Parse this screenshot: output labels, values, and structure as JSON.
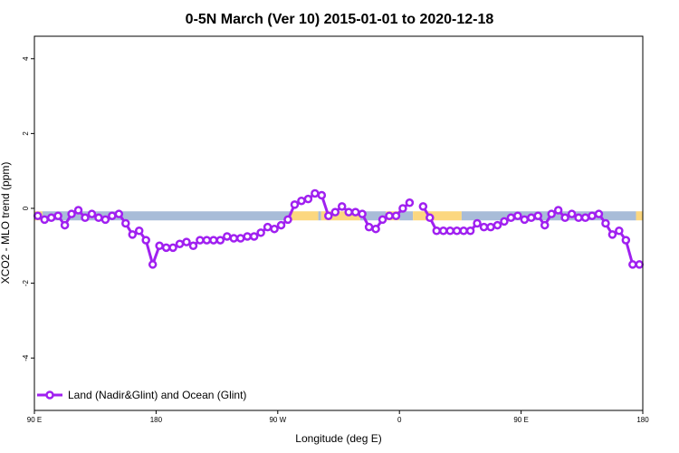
{
  "chart_data": {
    "type": "line",
    "title": "0-5N March (Ver 10)   2015-01-01 to 2020-12-18",
    "xlabel": "Longitude (deg E)",
    "ylabel": "XCO2 - MLO trend (ppm)",
    "xlim": [
      90,
      540
    ],
    "ylim": [
      -5.4,
      4.6
    ],
    "xticks": [
      {
        "value": 90,
        "label": "90 E"
      },
      {
        "value": 180,
        "label": "180"
      },
      {
        "value": 270,
        "label": "90 W"
      },
      {
        "value": 360,
        "label": "0"
      },
      {
        "value": 450,
        "label": "90 E"
      },
      {
        "value": 540,
        "label": "180"
      }
    ],
    "yticks": [
      {
        "value": -4,
        "label": "-4"
      },
      {
        "value": -2,
        "label": "-2"
      },
      {
        "value": 0,
        "label": "0"
      },
      {
        "value": 2,
        "label": "2"
      },
      {
        "value": 4,
        "label": "4"
      }
    ],
    "surface_band": {
      "y_value": -0.2,
      "segments": [
        {
          "type": "land",
          "from": 90,
          "to": 96,
          "color": "#fcd77f"
        },
        {
          "type": "ocean",
          "from": 96,
          "to": 280,
          "color": "#a8bcd8"
        },
        {
          "type": "land",
          "from": 280,
          "to": 300,
          "color": "#fcd77f"
        },
        {
          "type": "ocean",
          "from": 300,
          "to": 302,
          "color": "#a8bcd8"
        },
        {
          "type": "land",
          "from": 302,
          "to": 331,
          "color": "#fcd77f"
        },
        {
          "type": "ocean",
          "from": 331,
          "to": 350,
          "color": "#a8bcd8"
        },
        {
          "type": "land",
          "from": 350,
          "to": 360,
          "color": "#fcd77f"
        },
        {
          "type": "ocean",
          "from": 360,
          "to": 370,
          "color": "#a8bcd8"
        },
        {
          "type": "land",
          "from": 370,
          "to": 406,
          "color": "#fcd77f"
        },
        {
          "type": "ocean",
          "from": 406,
          "to": 535,
          "color": "#a8bcd8"
        },
        {
          "type": "land",
          "from": 535,
          "to": 540,
          "color": "#fcd77f"
        }
      ]
    },
    "series": [
      {
        "name": "Land (Nadir&Glint) and Ocean (Glint)",
        "color": "#a020f0",
        "segments": [
          {
            "x": [
              92.5,
              97.5,
              102.5,
              107.5,
              112.5,
              117.5,
              122.5,
              127.5,
              132.5,
              137.5,
              142.5,
              147.5,
              152.5,
              157.5,
              162.5,
              167.5,
              172.5,
              177.5,
              182.5,
              187.5,
              192.5,
              197.5,
              202.5,
              207.5,
              212.5,
              217.5,
              222.5,
              227.5,
              232.5,
              237.5,
              242.5,
              247.5,
              252.5,
              257.5,
              262.5,
              267.5,
              272.5,
              277.5,
              282.5,
              287.5,
              292.5,
              297.5,
              302.5,
              307.5,
              312.5,
              317.5,
              322.5,
              327.5,
              332.5,
              337.5,
              342.5,
              347.5,
              352.5,
              357.5,
              362.5,
              367.5
            ],
            "y": [
              -0.2,
              -0.3,
              -0.25,
              -0.2,
              -0.45,
              -0.15,
              -0.05,
              -0.25,
              -0.15,
              -0.25,
              -0.3,
              -0.2,
              -0.15,
              -0.4,
              -0.7,
              -0.6,
              -0.85,
              -1.5,
              -1.0,
              -1.05,
              -1.05,
              -0.95,
              -0.9,
              -1.0,
              -0.85,
              -0.85,
              -0.85,
              -0.85,
              -0.75,
              -0.8,
              -0.8,
              -0.75,
              -0.75,
              -0.65,
              -0.5,
              -0.55,
              -0.45,
              -0.3,
              0.1,
              0.2,
              0.25,
              0.4,
              0.35,
              -0.2,
              -0.1,
              0.05,
              -0.1,
              -0.1,
              -0.15,
              -0.5,
              -0.55,
              -0.3,
              -0.2,
              -0.2,
              0.0,
              0.15
            ]
          },
          {
            "x": [
              377.5,
              382.5,
              387.5,
              392.5,
              397.5,
              402.5,
              407.5,
              412.5,
              417.5,
              422.5,
              427.5,
              432.5,
              437.5,
              442.5,
              447.5,
              452.5,
              457.5,
              462.5,
              467.5,
              472.5,
              477.5,
              482.5,
              487.5,
              492.5,
              497.5,
              502.5,
              507.5,
              512.5,
              517.5,
              522.5,
              527.5,
              532.5,
              537.5
            ],
            "y": [
              0.05,
              -0.25,
              -0.6,
              -0.6,
              -0.6,
              -0.6,
              -0.6,
              -0.6,
              -0.4,
              -0.5,
              -0.5,
              -0.45,
              -0.35,
              -0.25,
              -0.2,
              -0.3,
              -0.25,
              -0.2,
              -0.45,
              -0.15,
              -0.05,
              -0.25,
              -0.15,
              -0.25,
              -0.25,
              -0.2,
              -0.15,
              -0.4,
              -0.7,
              -0.6,
              -0.85,
              -1.5,
              -1.5
            ]
          }
        ]
      }
    ],
    "legend": {
      "position": "bottom-left",
      "label": "Land (Nadir&Glint) and Ocean (Glint)"
    }
  }
}
